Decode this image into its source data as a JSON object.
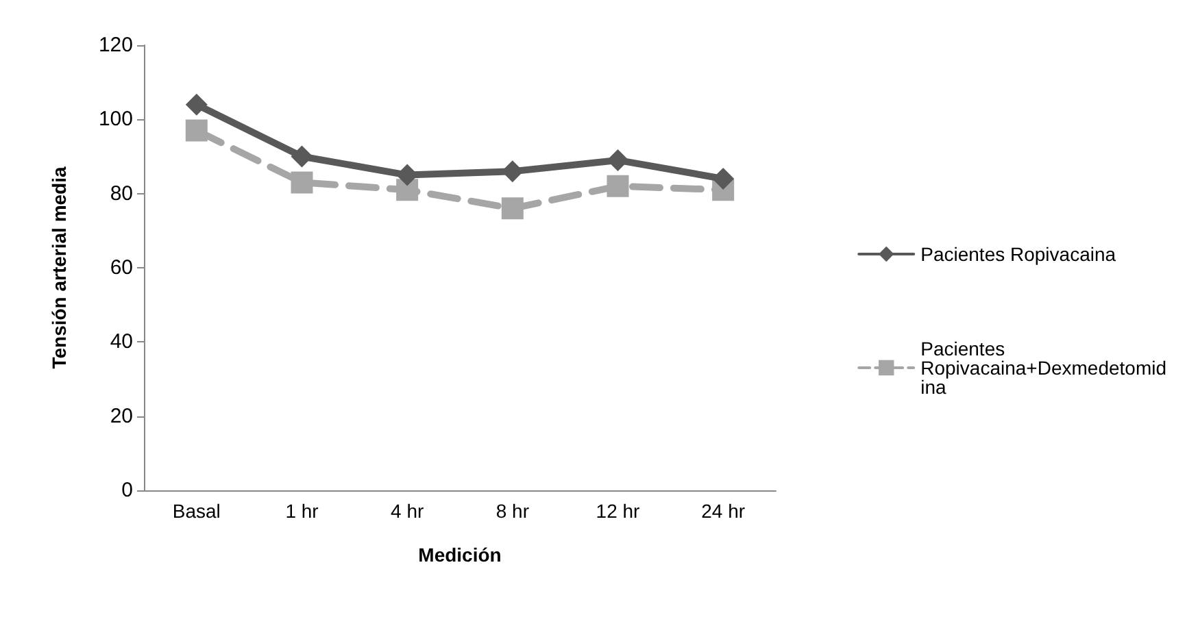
{
  "chart_data": {
    "type": "line",
    "xlabel": "Medición",
    "ylabel": "Tensión arterial media",
    "categories": [
      "Basal",
      "1 hr",
      "4 hr",
      "8 hr",
      "12 hr",
      "24 hr"
    ],
    "ylim": [
      0,
      120
    ],
    "yticks": [
      0,
      20,
      40,
      60,
      80,
      100,
      120
    ],
    "grid": false,
    "legend": "right",
    "series": [
      {
        "name": "Pacientes Ropivacaina",
        "color": "#595959",
        "marker": "diamond",
        "line_style": "solid",
        "values": [
          104,
          90,
          85,
          86,
          89,
          84
        ]
      },
      {
        "name": "Pacientes Ropivacaina+Dexmedetomidina",
        "color": "#a6a6a6",
        "marker": "square",
        "line_style": "dashed",
        "values": [
          97,
          83,
          81,
          76,
          82,
          81
        ]
      }
    ]
  }
}
